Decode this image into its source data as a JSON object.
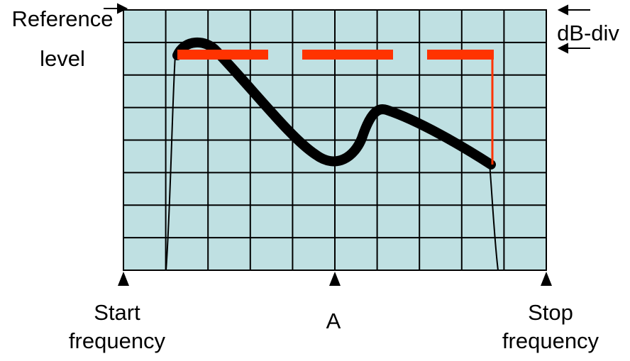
{
  "labels": {
    "reference_level": [
      "Reference",
      "level"
    ],
    "db_div": "dB-div",
    "start_frequency": [
      "Start",
      "frequency"
    ],
    "center": "A",
    "stop_frequency": [
      "Stop",
      "frequency"
    ]
  },
  "grid": {
    "columns": 10,
    "rows": 8
  },
  "colors": {
    "screen_background": "#bfe0e2",
    "grid_lines": "#000000",
    "trace": "#000000",
    "limit_line": "#ff3300"
  }
}
